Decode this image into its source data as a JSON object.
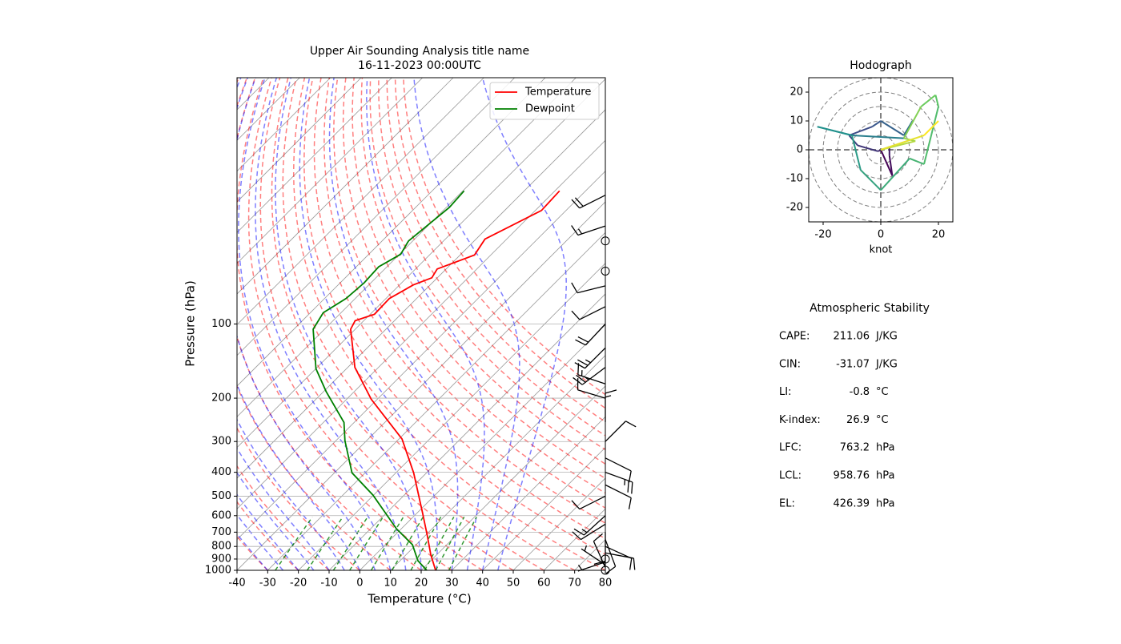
{
  "chart_data": [
    {
      "type": "skewt",
      "title": "Upper Air Sounding Analysis title name",
      "subtitle": "16-11-2023 00:00UTC",
      "x_label": "Temperature (°C)",
      "y_label": "Pressure (hPa)",
      "xlim": [
        -40,
        80
      ],
      "ylim": [
        1000,
        10
      ],
      "y_scale": "log",
      "xticks": [
        -40,
        -30,
        -20,
        -10,
        0,
        10,
        20,
        30,
        40,
        50,
        60,
        70,
        80
      ],
      "yticks": [
        1000,
        900,
        800,
        700,
        600,
        500,
        400,
        300,
        200,
        100
      ],
      "grid": true,
      "legend": "upper right",
      "series": [
        {
          "name": "Temperature",
          "color": "#ff0000",
          "y": [
            1000,
            861,
            730,
            584,
            402,
            293,
            202,
            150,
            105,
            97,
            91.3,
            78.8,
            69.4,
            64.9,
            59.8,
            52.5,
            45.2,
            34.6,
            28.8
          ],
          "x": [
            24.7,
            17.9,
            11.1,
            1.7,
            -14.2,
            -29,
            -52,
            -67.7,
            -81.5,
            -82.8,
            -78.6,
            -78.9,
            -75.5,
            -71.8,
            -72.9,
            -65.3,
            -67.1,
            -58,
            -58.5
          ]
        },
        {
          "name": "Dewpoint",
          "color": "#008000",
          "y": [
            1000,
            914,
            787,
            678,
            495,
            402,
            298,
            251,
            188,
            152,
            105,
            90,
            78.8,
            68,
            58.6,
            52.1,
            46,
            33.6,
            28.8
          ],
          "x": [
            21.8,
            15.8,
            8.8,
            -1.6,
            -20.2,
            -34.3,
            -47,
            -53.3,
            -69.2,
            -79.9,
            -93.7,
            -95.8,
            -93,
            -92.2,
            -92.7,
            -89.6,
            -91.4,
            -89,
            -89.6
          ]
        }
      ],
      "wind": {
        "pressure": [
          1000,
          975,
          950,
          925,
          900,
          850,
          800,
          750,
          700,
          650,
          600,
          500,
          450,
          400,
          350,
          300,
          250,
          200,
          175,
          150,
          125,
          100,
          85,
          70,
          61,
          46,
          40,
          30
        ],
        "u": [
          0,
          4,
          3,
          3,
          -1,
          -8,
          -11,
          -3,
          0,
          8,
          11,
          8,
          -10,
          -22,
          -10,
          -7,
          0,
          10,
          15,
          20,
          19,
          14,
          8,
          12,
          0,
          0,
          15,
          20
        ],
        "v": [
          0,
          -9,
          -2,
          1,
          -0.5,
          1.5,
          5,
          8,
          10,
          5,
          10,
          4,
          5,
          8,
          5,
          -7,
          -14,
          -3,
          -5,
          15,
          19,
          15,
          4,
          3,
          0,
          0,
          5,
          10
        ]
      }
    },
    {
      "type": "hodograph",
      "title": "Hodograph",
      "x_label": "knot",
      "xlim": [
        -25,
        25
      ],
      "ylim": [
        -25,
        25
      ],
      "xticks": [
        -20,
        0,
        20
      ],
      "yticks": [
        -20,
        -10,
        0,
        10,
        20
      ],
      "rings": [
        5,
        10,
        15,
        20,
        25
      ],
      "colormap": [
        "#440154",
        "#3b528b",
        "#21918c",
        "#5ec962",
        "#fde725"
      ]
    }
  ],
  "stability": {
    "title": "Atmospheric Stability",
    "rows": [
      {
        "label": "CAPE:",
        "value": 211.06,
        "unit": "J/KG"
      },
      {
        "label": "CIN:",
        "value": -31.07,
        "unit": "J/KG"
      },
      {
        "label": "LI:",
        "value": -0.8,
        "unit": "°C"
      },
      {
        "label": "K-index:",
        "value": 26.9,
        "unit": "°C"
      },
      {
        "label": "LFC:",
        "value": 763.2,
        "unit": "hPa"
      },
      {
        "label": "LCL:",
        "value": 958.76,
        "unit": "hPa"
      },
      {
        "label": "EL:",
        "value": 426.39,
        "unit": "hPa"
      }
    ]
  }
}
